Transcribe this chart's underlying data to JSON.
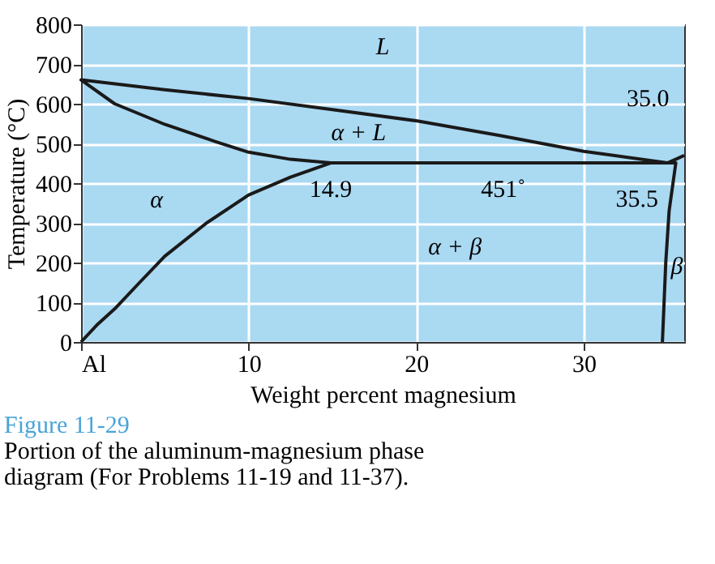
{
  "chart_data": {
    "type": "line",
    "title": "Figure 11-29",
    "subtitle": "Portion of the aluminum-magnesium phase diagram (For Problems 11-19 and 11-37).",
    "xlabel": "Weight percent magnesium",
    "ylabel": "Temperature (°C)",
    "xlim": [
      0,
      36
    ],
    "xticks": [
      {
        "value": 0,
        "label": "Al"
      },
      10,
      20,
      30
    ],
    "ylim": [
      0,
      800
    ],
    "yticks": [
      0,
      100,
      200,
      300,
      400,
      500,
      600,
      700,
      800
    ],
    "grid": true,
    "legend": false,
    "marker": "none",
    "line_style": "solid",
    "series": [
      {
        "color": "#1a1a1a",
        "x": [
          14.9,
          12.5,
          10,
          8,
          5,
          2,
          0,
          5,
          10,
          15,
          20,
          25,
          30,
          35,
          35.6,
          36
        ],
        "values": [
          451,
          460,
          478,
          505,
          548,
          600,
          660,
          635,
          613,
          585,
          557,
          520,
          480,
          451,
          462,
          470
        ]
      },
      {
        "color": "#1a1a1a",
        "x": [
          0,
          1,
          2,
          3.5,
          5,
          7.5,
          10,
          12.5,
          14.9,
          35.5,
          35.1,
          34.9,
          34.8,
          34.7
        ],
        "values": [
          0,
          45,
          83,
          150,
          216,
          300,
          370,
          415,
          451,
          451,
          330,
          200,
          100,
          0
        ]
      }
    ],
    "annotations": [
      "L",
      "α + L",
      "α",
      "α + β",
      "β",
      {
        "text": "14.9",
        "x": 14.9,
        "y": 451
      },
      {
        "text": "451˚",
        "x": 25,
        "y": 451
      },
      {
        "text": "35.0",
        "x": 35,
        "y": 451
      },
      {
        "text": "35.5",
        "x": 35.5,
        "y": 451
      }
    ]
  }
}
